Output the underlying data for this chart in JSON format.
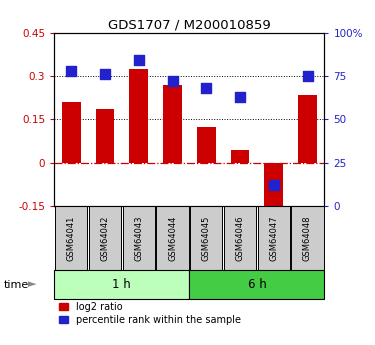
{
  "title": "GDS1707 / M200010859",
  "samples": [
    "GSM64041",
    "GSM64042",
    "GSM64043",
    "GSM64044",
    "GSM64045",
    "GSM64046",
    "GSM64047",
    "GSM64048"
  ],
  "log2_ratio": [
    0.21,
    0.185,
    0.325,
    0.27,
    0.125,
    0.045,
    -0.19,
    0.235
  ],
  "percentile_rank": [
    0.78,
    0.76,
    0.84,
    0.72,
    0.68,
    0.63,
    0.12,
    0.75
  ],
  "groups": [
    {
      "label": "1 h",
      "start": 0,
      "end": 4,
      "color": "#bbffbb"
    },
    {
      "label": "6 h",
      "start": 4,
      "end": 8,
      "color": "#44cc44"
    }
  ],
  "left_ylim": [
    -0.15,
    0.45
  ],
  "right_ylim": [
    0.0,
    1.0
  ],
  "left_yticks": [
    -0.15,
    0.0,
    0.15,
    0.3,
    0.45
  ],
  "right_yticks": [
    0.0,
    0.25,
    0.5,
    0.75,
    1.0
  ],
  "right_yticklabels": [
    "0",
    "25",
    "50",
    "75",
    "100%"
  ],
  "left_yticklabels": [
    "-0.15",
    "0",
    "0.15",
    "0.3",
    "0.45"
  ],
  "hlines": [
    0.15,
    0.3
  ],
  "bar_color": "#cc0000",
  "dot_color": "#2222cc",
  "bar_width": 0.55,
  "dot_size": 50,
  "left_tick_color": "#cc0000",
  "right_tick_color": "#2222cc",
  "zero_line_color": "#cc0000",
  "zero_line_style": "-.",
  "hline_style": ":",
  "hline_color": "black",
  "time_label": "time",
  "arrow": "►",
  "legend_log2": "log2 ratio",
  "legend_pct": "percentile rank within the sample",
  "bg_color": "#ffffff",
  "label_bg_color": "#cccccc"
}
